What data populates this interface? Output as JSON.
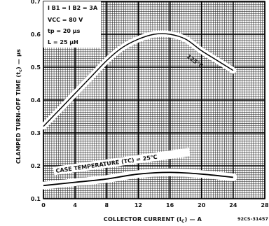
{
  "chart_data": {
    "type": "line",
    "xlabel": "COLLECTOR CURRENT (I",
    "xlabel_sub": "C",
    "xlabel_tail": ") — A",
    "ylabel": "CLAMPED TURN-OFF TIME (t",
    "ylabel_sub": "c",
    "ylabel_tail": ") — µs",
    "xlim": [
      0,
      28
    ],
    "ylim": [
      0.1,
      0.7
    ],
    "x_ticks": [
      "0",
      "4",
      "8",
      "12",
      "16",
      "20",
      "24",
      "28"
    ],
    "y_ticks": [
      "0.1",
      "0.2",
      "0.3",
      "0.4",
      "0.5",
      "0.6",
      "0.7"
    ],
    "grid": true,
    "conditions": [
      "I B1 = I B2 = 3A",
      "VCC = 80 V",
      "tp = 20 µs",
      "L = 25 µH"
    ],
    "annotations": [
      "CASE TEMPERATURE (TC) = 25°C"
    ],
    "series": [
      {
        "name": "125°C",
        "x": [
          0,
          2,
          4,
          6,
          8,
          10,
          12,
          14,
          16,
          18,
          20,
          22,
          24
        ],
        "y": [
          0.32,
          0.37,
          0.42,
          0.47,
          0.52,
          0.56,
          0.585,
          0.6,
          0.6,
          0.585,
          0.55,
          0.52,
          0.49
        ]
      },
      {
        "name": "25°C",
        "x": [
          0,
          4,
          8,
          12,
          16,
          20,
          24
        ],
        "y": [
          0.14,
          0.15,
          0.16,
          0.175,
          0.18,
          0.175,
          0.165
        ]
      }
    ]
  },
  "figure_id": "92CS-31457"
}
